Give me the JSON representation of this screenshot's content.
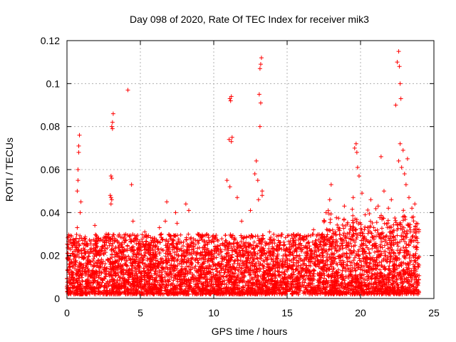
{
  "chart_data": {
    "type": "scatter",
    "title": "Day 098 of 2020, Rate Of TEC Index for receiver mik3",
    "xlabel": "GPS time / hours",
    "ylabel": "ROTI / TECUs",
    "xlim": [
      0,
      25
    ],
    "ylim": [
      0,
      0.12
    ],
    "xticks": [
      0,
      5,
      10,
      15,
      20,
      25
    ],
    "xtick_labels": [
      "0",
      "5",
      "10",
      "15",
      "20",
      "25"
    ],
    "yticks": [
      0,
      0.02,
      0.04,
      0.06,
      0.08,
      0.1,
      0.12
    ],
    "ytick_labels": [
      "0",
      "0.02",
      "0.04",
      "0.06",
      "0.08",
      "0.1",
      "0.12"
    ],
    "grid": true,
    "marker": "+",
    "color": "#ff0000",
    "series": [
      {
        "name": "ROTI",
        "x": [
          0.1,
          0.2,
          0.4,
          0.6,
          0.7,
          0.75,
          0.8,
          0.8,
          0.85,
          0.9,
          0.95,
          0.7,
          0.75,
          0.65,
          1.1,
          1.4,
          1.8,
          1.9,
          2.3,
          2.7,
          2.95,
          3.0,
          3.05,
          3.1,
          3.15,
          3.0,
          3.05,
          3.1,
          3.0,
          3.05,
          3.5,
          4.0,
          4.15,
          4.4,
          4.5,
          4.9,
          5.3,
          5.9,
          6.3,
          6.7,
          6.8,
          7.4,
          7.5,
          8.1,
          8.3,
          8.9,
          9.0,
          9.6,
          10.1,
          10.7,
          10.9,
          11.05,
          11.1,
          11.15,
          11.2,
          11.25,
          11.1,
          11.2,
          11.6,
          11.9,
          12.5,
          12.8,
          12.9,
          13.0,
          13.05,
          13.1,
          13.15,
          13.2,
          13.25,
          13.15,
          13.2,
          13.3,
          13.3,
          13.8,
          14.4,
          15.0,
          15.6,
          16.2,
          16.8,
          17.4,
          17.8,
          17.9,
          18.0,
          18.5,
          18.9,
          19.3,
          19.5,
          19.6,
          19.7,
          19.75,
          19.8,
          19.9,
          20.1,
          20.3,
          20.7,
          20.9,
          21.2,
          21.4,
          21.6,
          21.9,
          22.1,
          22.4,
          22.5,
          22.6,
          22.65,
          22.7,
          22.75,
          22.6,
          22.7,
          22.8,
          22.9,
          23.0,
          23.1,
          23.2,
          23.3,
          23.4,
          23.5,
          23.6,
          23.7,
          23.8,
          23.9
        ],
        "y": [
          0.004,
          0.016,
          0.012,
          0.022,
          0.05,
          0.06,
          0.068,
          0.071,
          0.076,
          0.04,
          0.045,
          0.033,
          0.055,
          0.026,
          0.019,
          0.009,
          0.021,
          0.034,
          0.015,
          0.028,
          0.048,
          0.057,
          0.08,
          0.082,
          0.086,
          0.047,
          0.056,
          0.079,
          0.044,
          0.046,
          0.024,
          0.012,
          0.097,
          0.053,
          0.036,
          0.018,
          0.031,
          0.026,
          0.033,
          0.036,
          0.045,
          0.04,
          0.035,
          0.044,
          0.041,
          0.03,
          0.027,
          0.012,
          0.028,
          0.019,
          0.055,
          0.074,
          0.093,
          0.092,
          0.094,
          0.075,
          0.052,
          0.073,
          0.047,
          0.036,
          0.041,
          0.058,
          0.064,
          0.055,
          0.046,
          0.095,
          0.107,
          0.109,
          0.112,
          0.08,
          0.091,
          0.05,
          0.048,
          0.031,
          0.027,
          0.02,
          0.025,
          0.029,
          0.032,
          0.03,
          0.041,
          0.046,
          0.053,
          0.033,
          0.043,
          0.032,
          0.047,
          0.07,
          0.072,
          0.068,
          0.061,
          0.057,
          0.049,
          0.022,
          0.046,
          0.033,
          0.043,
          0.066,
          0.05,
          0.042,
          0.046,
          0.09,
          0.11,
          0.115,
          0.108,
          0.1,
          0.093,
          0.064,
          0.072,
          0.061,
          0.069,
          0.058,
          0.053,
          0.065,
          0.047,
          0.031,
          0.042,
          0.038,
          0.044,
          0.035,
          0.026
        ]
      }
    ],
    "baseline_band": {
      "x_start": 0.0,
      "x_end": 24.0,
      "y_min": 0.002,
      "y_max": 0.03
    }
  }
}
